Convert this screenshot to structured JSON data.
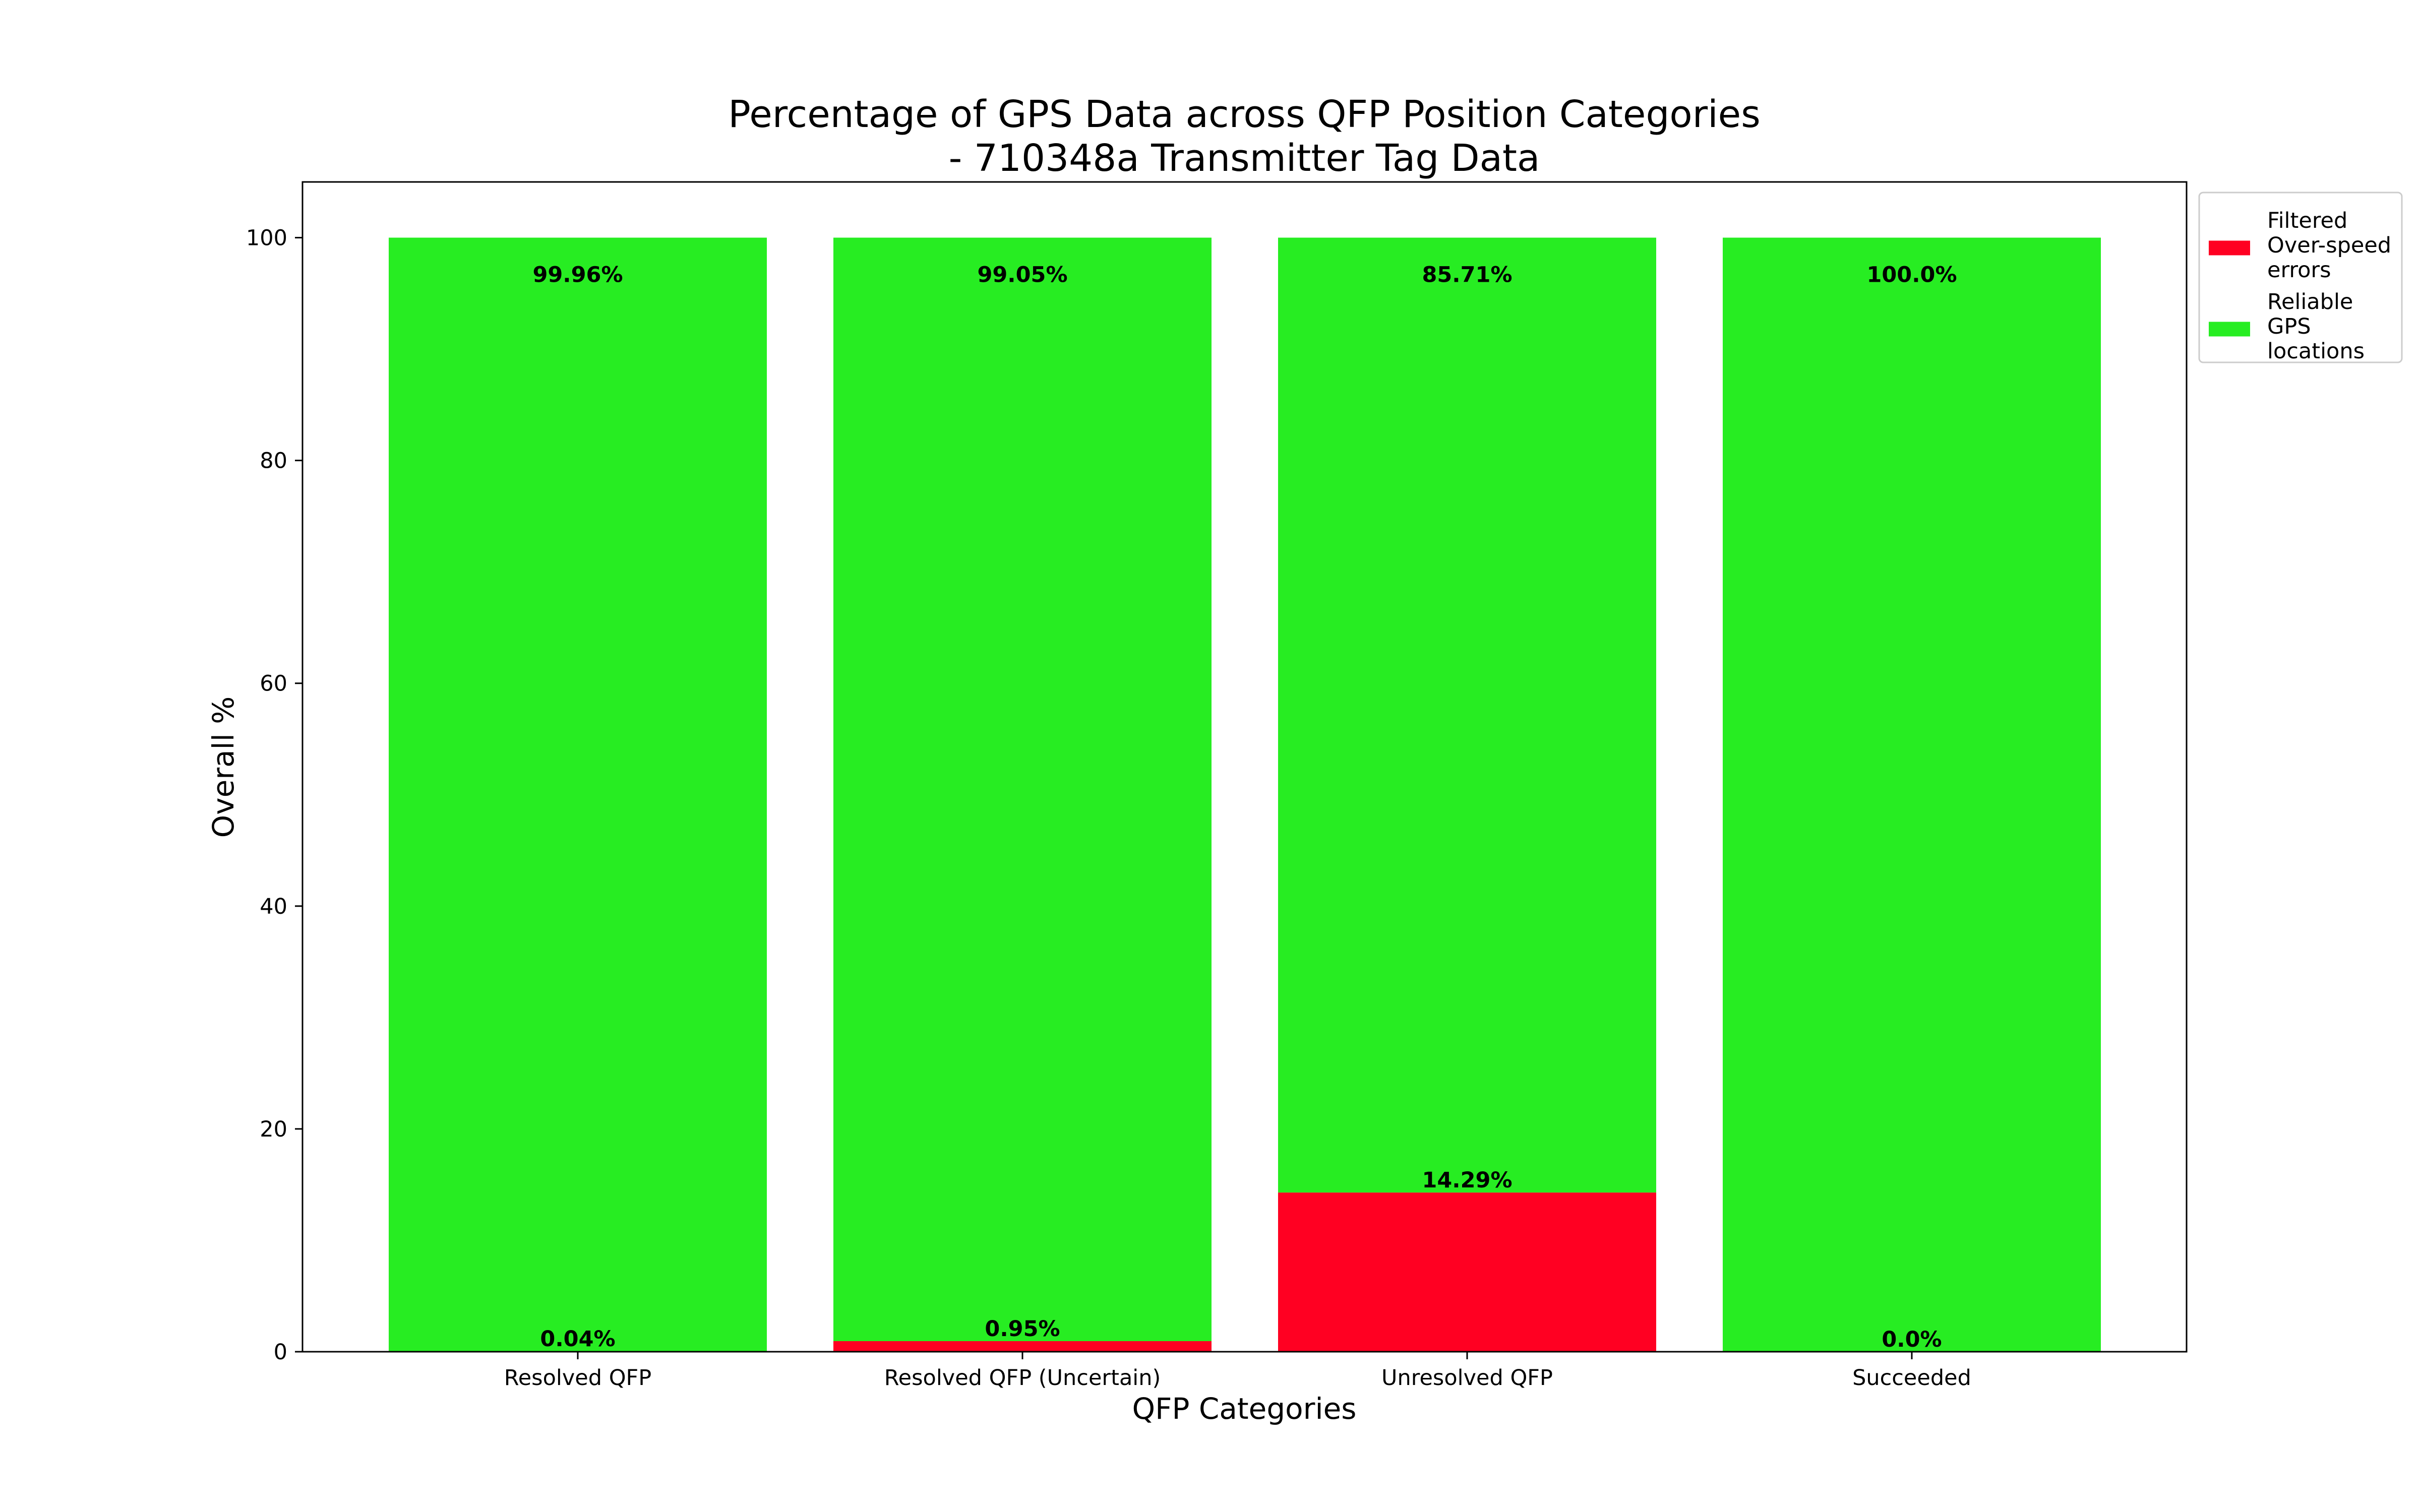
{
  "chart_data": {
    "type": "bar",
    "stacked": true,
    "title": "Percentage of GPS Data across QFP Position Categories\n- 710348a Transmitter Tag Data",
    "xlabel": "QFP Categories",
    "ylabel": "Overall %",
    "ylim": [
      0,
      105
    ],
    "yticks": [
      0,
      20,
      40,
      60,
      80,
      100
    ],
    "grid": false,
    "legend_position": "upper-right outside",
    "categories": [
      "Resolved QFP",
      "Resolved QFP (Uncertain)",
      "Unresolved QFP",
      "Succeeded"
    ],
    "series": [
      {
        "name": "Filtered\nOver-speed\nerrors",
        "color": "#ff0022",
        "values": [
          0.04,
          0.95,
          14.29,
          0.0
        ],
        "labels": [
          "0.04%",
          "0.95%",
          "14.29%",
          "0.0%"
        ]
      },
      {
        "name": "Reliable\nGPS\nlocations",
        "color": "#27ed22",
        "values": [
          99.96,
          99.05,
          85.71,
          100.0
        ],
        "labels": [
          "99.96%",
          "99.05%",
          "85.71%",
          "100.0%"
        ]
      }
    ]
  }
}
